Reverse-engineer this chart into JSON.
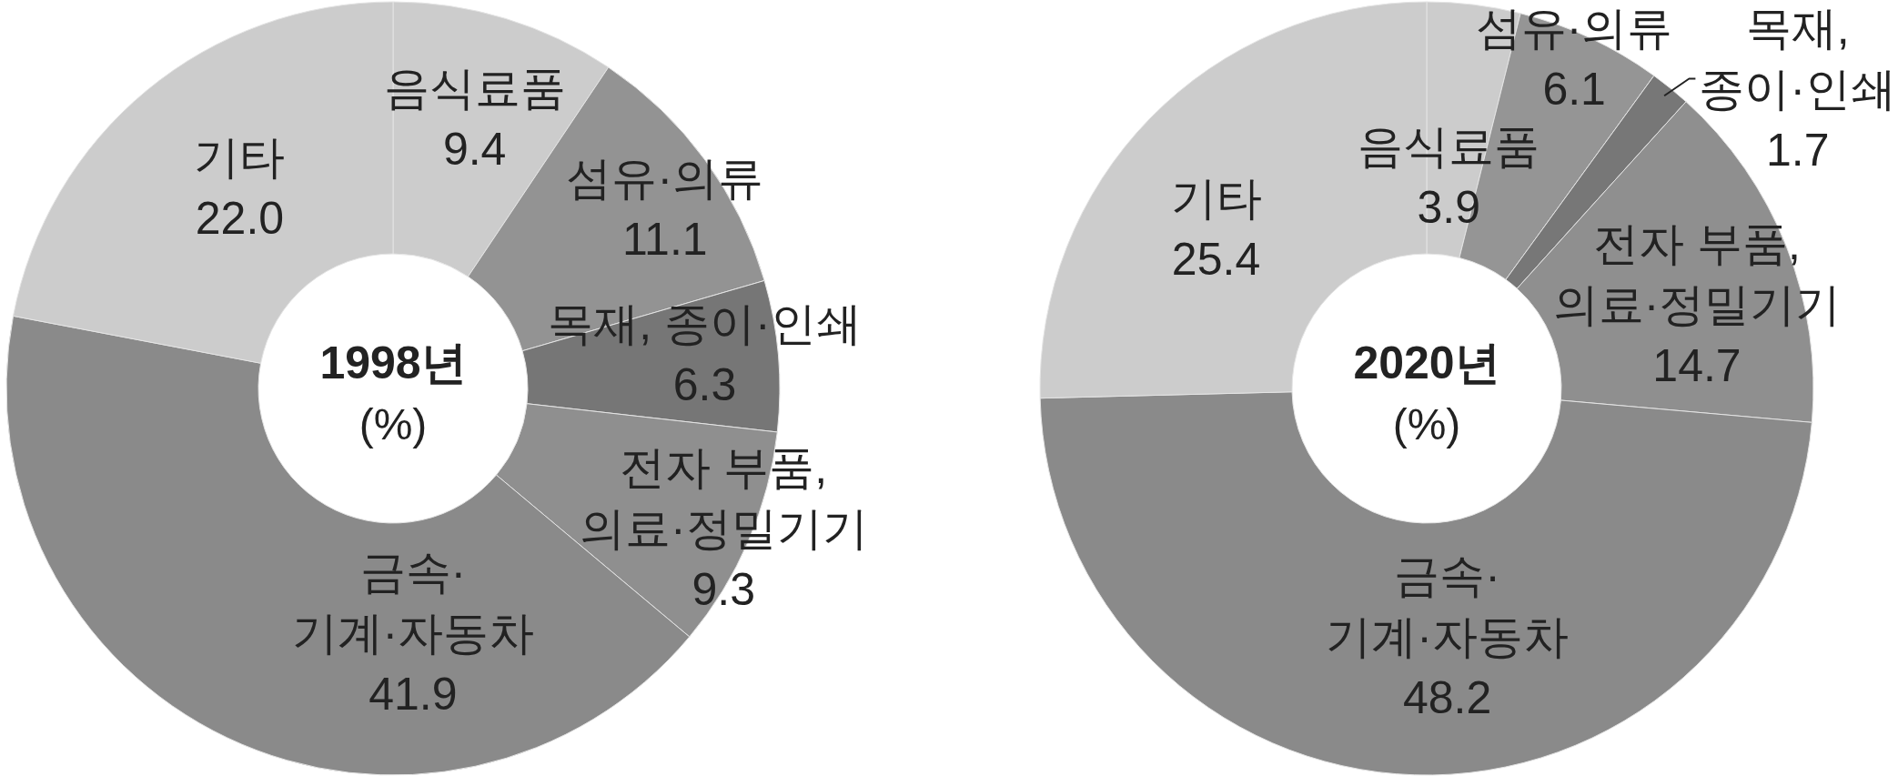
{
  "chart_data": [
    {
      "type": "donut",
      "title": "1998년",
      "subtitle": "(%)",
      "categories": [
        "음식료품",
        "섬유·의류",
        "목재, 종이·인쇄",
        "전자 부품, 의료·정밀기기",
        "금속·기계·자동차",
        "기타"
      ],
      "values": [
        9.4,
        11.1,
        6.3,
        9.3,
        41.9,
        22.0
      ],
      "value_labels": [
        "9.4",
        "11.1",
        "6.3",
        "9.3",
        "41.9",
        "22.0"
      ],
      "colors": [
        "#cccccc",
        "#939393",
        "#767676",
        "#8f8f8f",
        "#8a8a8a",
        "#cccccc"
      ]
    },
    {
      "type": "donut",
      "title": "2020년",
      "subtitle": "(%)",
      "categories": [
        "음식료품",
        "섬유·의류",
        "목재, 종이·인쇄",
        "전자 부품, 의료·정밀기기",
        "금속·기계·자동차",
        "기타"
      ],
      "values": [
        3.9,
        6.1,
        1.7,
        14.7,
        48.2,
        25.4
      ],
      "value_labels": [
        "3.9",
        "6.1",
        "1.7",
        "14.7",
        "48.2",
        "25.4"
      ],
      "colors": [
        "#cccccc",
        "#959595",
        "#777777",
        "#8f8f8f",
        "#8a8a8a",
        "#cccccc"
      ]
    }
  ]
}
